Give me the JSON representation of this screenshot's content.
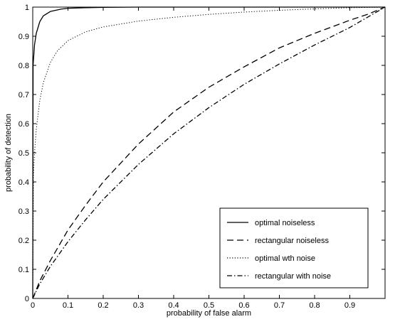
{
  "chart_data": {
    "type": "line",
    "title": "",
    "xlabel": "probability of false alarm",
    "ylabel": "probability of detection",
    "xlim": [
      0,
      1
    ],
    "ylim": [
      0,
      1
    ],
    "x_ticks": [
      0,
      0.1,
      0.2,
      0.3,
      0.4,
      0.5,
      0.6,
      0.7,
      0.8,
      0.9
    ],
    "x_tick_labels": [
      "0",
      "0.1",
      "0.2",
      "0.3",
      "0.4",
      "0.5",
      "0.6",
      "0.7",
      "0.8",
      "0.9"
    ],
    "y_ticks": [
      0,
      0.1,
      0.2,
      0.3,
      0.4,
      0.5,
      0.6,
      0.7,
      0.8,
      0.9,
      1
    ],
    "y_tick_labels": [
      "0",
      "0.1",
      "0.2",
      "0.3",
      "0.4",
      "0.5",
      "0.6",
      "0.7",
      "0.8",
      "0.9",
      "1"
    ],
    "grid": false,
    "legend_position": "bottom-right",
    "series": [
      {
        "name": "optimal noiseless",
        "style": "solid",
        "color": "#000000",
        "x": [
          0,
          0.001,
          0.005,
          0.01,
          0.02,
          0.03,
          0.05,
          0.08,
          0.1,
          0.15,
          0.2,
          0.3,
          0.5,
          0.7,
          1.0
        ],
        "y": [
          0,
          0.8,
          0.87,
          0.91,
          0.95,
          0.97,
          0.985,
          0.993,
          0.996,
          0.998,
          0.999,
          1.0,
          1.0,
          1.0,
          1.0
        ]
      },
      {
        "name": "rectangular noiseless",
        "style": "dashed",
        "color": "#000000",
        "x": [
          0,
          0.02,
          0.05,
          0.1,
          0.15,
          0.2,
          0.3,
          0.4,
          0.5,
          0.6,
          0.7,
          0.8,
          0.9,
          0.95,
          1.0
        ],
        "y": [
          0,
          0.06,
          0.13,
          0.235,
          0.32,
          0.4,
          0.53,
          0.64,
          0.725,
          0.795,
          0.86,
          0.91,
          0.955,
          0.975,
          1.0
        ]
      },
      {
        "name": "optimal wth noise",
        "style": "dotted",
        "color": "#000000",
        "x": [
          0,
          0.002,
          0.005,
          0.01,
          0.02,
          0.03,
          0.05,
          0.07,
          0.1,
          0.15,
          0.2,
          0.3,
          0.4,
          0.5,
          0.6,
          0.7,
          0.8,
          0.9,
          1.0
        ],
        "y": [
          0,
          0.42,
          0.5,
          0.58,
          0.68,
          0.74,
          0.81,
          0.85,
          0.885,
          0.915,
          0.932,
          0.952,
          0.965,
          0.975,
          0.983,
          0.989,
          0.994,
          0.998,
          1.0
        ]
      },
      {
        "name": "rectangular with noise",
        "style": "dashdot",
        "color": "#000000",
        "x": [
          0,
          0.02,
          0.05,
          0.1,
          0.15,
          0.2,
          0.3,
          0.4,
          0.5,
          0.6,
          0.7,
          0.8,
          0.9,
          0.95,
          1.0
        ],
        "y": [
          0,
          0.05,
          0.11,
          0.195,
          0.27,
          0.34,
          0.46,
          0.565,
          0.655,
          0.735,
          0.805,
          0.87,
          0.93,
          0.965,
          1.0
        ]
      }
    ]
  }
}
